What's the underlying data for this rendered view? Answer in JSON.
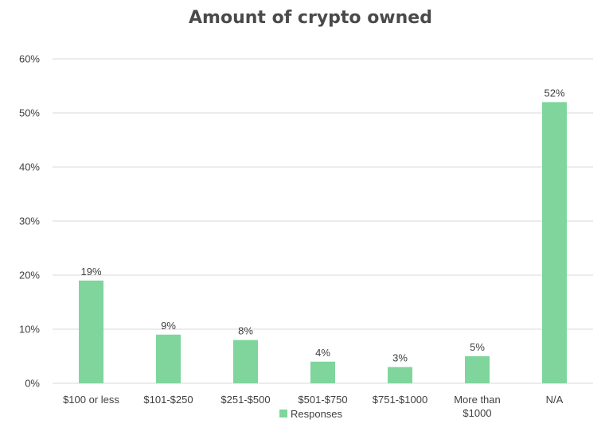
{
  "chart_data": {
    "type": "bar",
    "title": "Amount of crypto owned",
    "categories": [
      [
        "$100 or less"
      ],
      [
        "$101-$250"
      ],
      [
        "$251-$500"
      ],
      [
        "$501-$750"
      ],
      [
        "$751-$1000"
      ],
      [
        "More than",
        "$1000"
      ],
      [
        "N/A"
      ]
    ],
    "series": [
      {
        "name": "Responses",
        "color": "#7fd59c",
        "values": [
          19,
          9,
          8,
          4,
          3,
          5,
          52
        ],
        "data_labels": [
          "19%",
          "9%",
          "8%",
          "4%",
          "3%",
          "5%",
          "52%"
        ]
      }
    ],
    "y_ticks": [
      "0%",
      "10%",
      "20%",
      "30%",
      "40%",
      "50%",
      "60%"
    ],
    "ylim": [
      0,
      60
    ],
    "grid": true,
    "legend_position": "bottom"
  }
}
